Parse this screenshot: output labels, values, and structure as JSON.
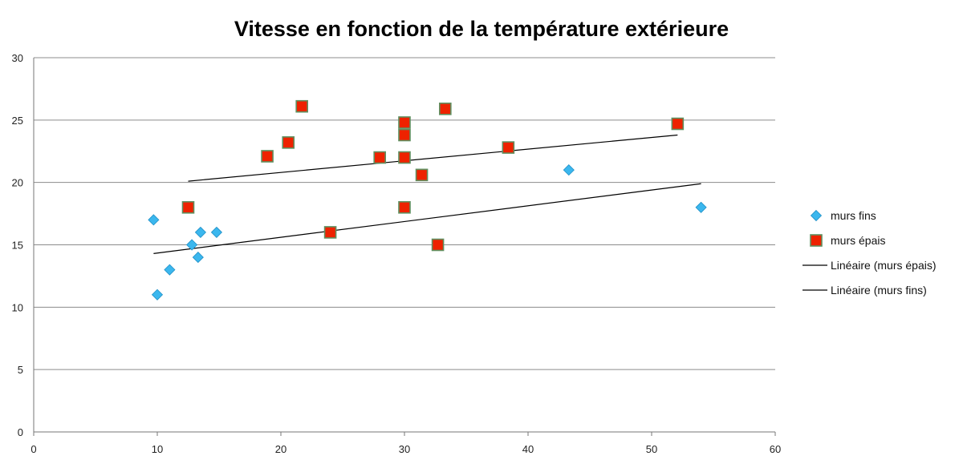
{
  "chart_data": {
    "type": "scatter",
    "title": "Vitesse en fonction de la température extérieure",
    "xlabel": "",
    "ylabel": "",
    "xlim": [
      0,
      60
    ],
    "ylim": [
      0,
      30
    ],
    "x_ticks": [
      0,
      10,
      20,
      30,
      40,
      50,
      60
    ],
    "y_ticks": [
      0,
      5,
      10,
      15,
      20,
      25,
      30
    ],
    "grid": "horizontal",
    "legend_position": "right",
    "series": [
      {
        "name": "murs fins",
        "marker": "diamond",
        "color": "#3bb7ee",
        "points": [
          [
            9.7,
            17
          ],
          [
            10,
            11
          ],
          [
            11,
            13
          ],
          [
            12.8,
            15
          ],
          [
            13.3,
            14
          ],
          [
            13.5,
            16
          ],
          [
            14.8,
            16
          ],
          [
            43.3,
            21
          ],
          [
            54,
            18
          ]
        ]
      },
      {
        "name": "murs épais",
        "marker": "square",
        "color": "#ee2200",
        "points": [
          [
            12.5,
            18
          ],
          [
            18.9,
            22.1
          ],
          [
            20.6,
            23.2
          ],
          [
            21.7,
            26.1
          ],
          [
            24,
            16
          ],
          [
            28,
            22
          ],
          [
            30,
            24.8
          ],
          [
            30,
            23.8
          ],
          [
            30,
            22
          ],
          [
            30,
            18
          ],
          [
            31.4,
            20.6
          ],
          [
            32.7,
            15
          ],
          [
            33.3,
            25.9
          ],
          [
            38.4,
            22.8
          ],
          [
            52.1,
            24.7
          ]
        ]
      }
    ],
    "trendlines": [
      {
        "name": "Linéaire (murs épais)",
        "x": [
          12.5,
          52.1
        ],
        "y": [
          20.1,
          23.8
        ],
        "color": "#000000"
      },
      {
        "name": "Linéaire (murs fins)",
        "x": [
          9.7,
          54
        ],
        "y": [
          14.3,
          19.9
        ],
        "color": "#000000"
      }
    ],
    "legend": [
      "murs fins",
      "murs épais",
      "Linéaire (murs épais)",
      "Linéaire (murs fins)"
    ]
  }
}
